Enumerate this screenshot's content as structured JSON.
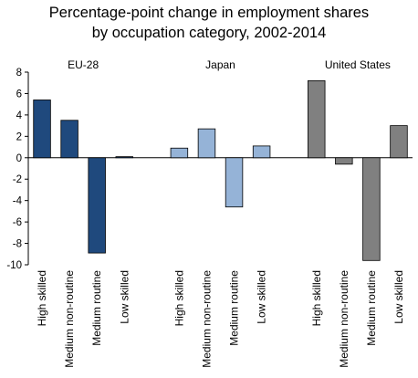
{
  "chart_data": {
    "type": "bar",
    "title_lines": [
      "Percentage-point change in employment shares",
      "by occupation category, 2002-2014"
    ],
    "xlabel": "",
    "ylabel": "",
    "ylim": [
      -10,
      8
    ],
    "yticks": [
      8,
      6,
      4,
      2,
      0,
      -2,
      -4,
      -6,
      -8,
      -10
    ],
    "grid": false,
    "categories": [
      "High skilled",
      "Medium non-routine",
      "Medium routine",
      "Low skilled"
    ],
    "panels": [
      {
        "name": "EU-28",
        "color": "#1f497d",
        "values": [
          5.4,
          3.5,
          -8.9,
          0.1
        ]
      },
      {
        "name": "Japan",
        "color": "#95b3d7",
        "values": [
          0.9,
          2.7,
          -4.6,
          1.1
        ]
      },
      {
        "name": "United States",
        "color": "#808080",
        "values": [
          7.2,
          -0.6,
          -9.6,
          3.0
        ]
      }
    ]
  }
}
